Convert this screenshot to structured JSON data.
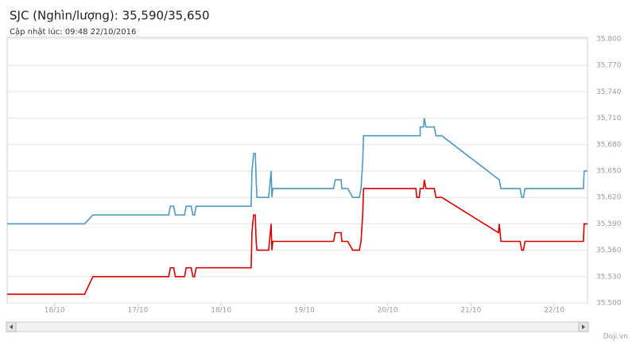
{
  "chart_data": {
    "type": "line",
    "title": "SJC (Nghìn/lượng): 35,590/35,650",
    "subtitle": "Cập nhật lúc: 09:48 22/10/2016",
    "source": "Doji.vn",
    "xlim": [
      15.43,
      22.4
    ],
    "xticks": [
      {
        "value": 16,
        "label": "16/10"
      },
      {
        "value": 17,
        "label": "17/10"
      },
      {
        "value": 18,
        "label": "18/10"
      },
      {
        "value": 19,
        "label": "19/10"
      },
      {
        "value": 20,
        "label": "20/10"
      },
      {
        "value": 21,
        "label": "21/10"
      },
      {
        "value": 22,
        "label": "22/10"
      }
    ],
    "ylim": [
      35500,
      35800
    ],
    "yticks": [
      {
        "value": 35500,
        "label": "35,500"
      },
      {
        "value": 35530,
        "label": "35,530"
      },
      {
        "value": 35560,
        "label": "35,560"
      },
      {
        "value": 35590,
        "label": "35,590"
      },
      {
        "value": 35620,
        "label": "35,620"
      },
      {
        "value": 35650,
        "label": "35,650"
      },
      {
        "value": 35680,
        "label": "35,680"
      },
      {
        "value": 35710,
        "label": "35,710"
      },
      {
        "value": 35740,
        "label": "35,740"
      },
      {
        "value": 35770,
        "label": "35,770"
      },
      {
        "value": 35800,
        "label": "35,800"
      }
    ],
    "grid": true,
    "series": [
      {
        "color": "#4f98c2",
        "x": [
          15.43,
          16.36,
          16.46,
          17.37,
          17.39,
          17.43,
          17.45,
          17.56,
          17.58,
          17.64,
          17.66,
          17.68,
          17.7,
          18.36,
          18.37,
          18.39,
          18.41,
          18.42,
          18.43,
          18.57,
          18.59,
          18.6,
          18.61,
          18.62,
          19.35,
          19.37,
          19.44,
          19.45,
          19.52,
          19.58,
          19.66,
          19.68,
          19.7,
          19.71,
          20.39,
          20.39,
          20.43,
          20.44,
          20.46,
          20.56,
          20.58,
          20.65,
          21.34,
          21.36,
          21.59,
          21.61,
          21.63,
          21.65,
          22.35,
          22.36,
          22.4
        ],
        "values": [
          35590,
          35590,
          35600,
          35600,
          35610,
          35610,
          35600,
          35600,
          35610,
          35610,
          35600,
          35600,
          35610,
          35610,
          35650,
          35670,
          35670,
          35640,
          35620,
          35620,
          35640,
          35650,
          35620,
          35630,
          35630,
          35640,
          35640,
          35630,
          35630,
          35620,
          35620,
          35630,
          35660,
          35690,
          35690,
          35700,
          35700,
          35710,
          35700,
          35700,
          35690,
          35690,
          35640,
          35630,
          35630,
          35620,
          35620,
          35630,
          35630,
          35650,
          35650
        ]
      },
      {
        "color": "#d40000",
        "x": [
          15.43,
          16.36,
          16.46,
          17.37,
          17.39,
          17.43,
          17.45,
          17.56,
          17.58,
          17.64,
          17.66,
          17.68,
          17.7,
          18.36,
          18.37,
          18.39,
          18.41,
          18.42,
          18.43,
          18.57,
          18.59,
          18.6,
          18.61,
          18.62,
          19.35,
          19.37,
          19.44,
          19.45,
          19.52,
          19.58,
          19.66,
          19.68,
          19.7,
          19.71,
          20.34,
          20.35,
          20.38,
          20.39,
          20.43,
          20.44,
          20.46,
          20.56,
          20.58,
          20.65,
          21.33,
          21.34,
          21.36,
          21.59,
          21.61,
          21.63,
          21.65,
          22.35,
          22.36,
          22.4
        ],
        "values": [
          35510,
          35510,
          35530,
          35530,
          35540,
          35540,
          35530,
          35530,
          35540,
          35540,
          35530,
          35530,
          35540,
          35540,
          35580,
          35600,
          35600,
          35570,
          35560,
          35560,
          35580,
          35590,
          35560,
          35570,
          35570,
          35580,
          35580,
          35570,
          35570,
          35560,
          35560,
          35570,
          35600,
          35630,
          35630,
          35620,
          35620,
          35630,
          35630,
          35640,
          35630,
          35630,
          35620,
          35620,
          35580,
          35590,
          35570,
          35570,
          35560,
          35560,
          35570,
          35570,
          35590,
          35590
        ]
      }
    ]
  }
}
